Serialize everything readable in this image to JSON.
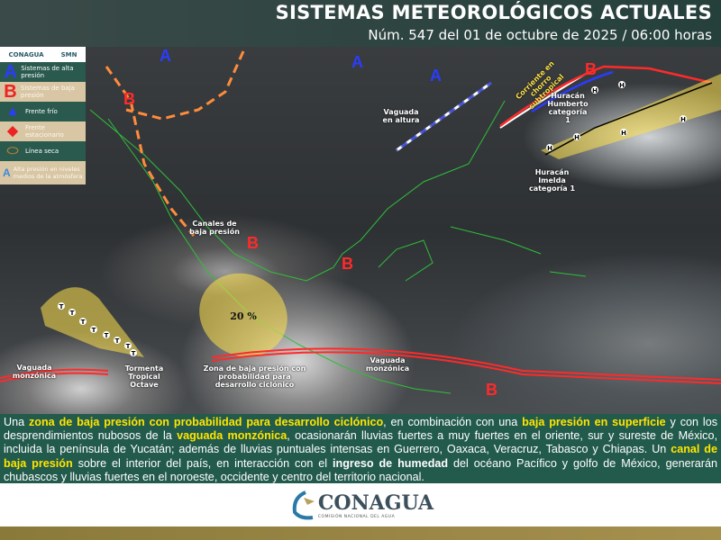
{
  "header": {
    "title": "SISTEMAS METEOROLÓGICOS ACTUALES",
    "subtitle": "Núm. 547 del 01 de octubre de 2025 / 06:00 horas"
  },
  "legend": {
    "logos": [
      "CONAGUA",
      "SMN"
    ],
    "items": [
      {
        "symbol": "A",
        "label": "Sistemas de alta presión",
        "icon": "high-pressure-icon"
      },
      {
        "symbol": "B",
        "label": "Sistemas de baja presión",
        "icon": "low-pressure-icon"
      },
      {
        "symbol": "",
        "label": "Frente frío",
        "icon": "cold-front-icon"
      },
      {
        "symbol": "",
        "label": "Frente estacionario",
        "icon": "stationary-front-icon"
      },
      {
        "symbol": "",
        "label": "Línea seca",
        "icon": "dry-line-icon"
      },
      {
        "symbol": "A",
        "label": "Alta presión en niveles medios de la atmósfera",
        "icon": "mid-level-high-icon"
      }
    ]
  },
  "map": {
    "high_symbol": "A",
    "low_symbol": "B",
    "storm_marker": "H",
    "ts_marker": "T",
    "labels": {
      "vaguada_altura": "Vaguada en altura",
      "jet": "Corriente en chorro subtropical",
      "humberto": "Huracán Humberto categoría 1",
      "imelda": "Huracán Imelda categoría 1",
      "canales": "Canales de baja presión",
      "prob": "20 %",
      "vaguada1": "Vaguada monzónica",
      "octave": "Tormenta Tropical Octave",
      "zona": "Zona de baja presión con probabilidad para desarrollo ciclónico",
      "vaguada2": "Vaguada monzónica"
    }
  },
  "colors": {
    "high": "#2a3cff",
    "low": "#ff2a2a",
    "header": "#25403b",
    "text_panel": "#225a4c",
    "highlight": "#ffe600"
  },
  "summary": {
    "p1": "Una ",
    "h1": "zona de baja presión con probabilidad para desarrollo ciclónico",
    "p2": ", en combinación con una ",
    "h2": "baja presión en superficie",
    "p3": " y con los desprendimientos nubosos de la ",
    "h3": "vaguada monzónica",
    "p4": ", ocasionarán lluvias fuertes a muy fuertes en el oriente, sur y sureste de México, incluida la península de Yucatán; además de lluvias puntuales intensas en Guerrero, Oaxaca, Veracruz, Tabasco  y Chiapas. Un ",
    "h4": "canal de baja presión",
    "p5": " sobre el interior del país, en interacción con el ",
    "h5": "ingreso de humedad",
    "p6": " del océano Pacífico y golfo de México, generarán chubascos y lluvias fuertes en el noroeste, occidente y centro del territorio nacional."
  },
  "footer": {
    "brand": "CONAGUA",
    "tagline": "COMISIÓN NACIONAL DEL AGUA"
  }
}
